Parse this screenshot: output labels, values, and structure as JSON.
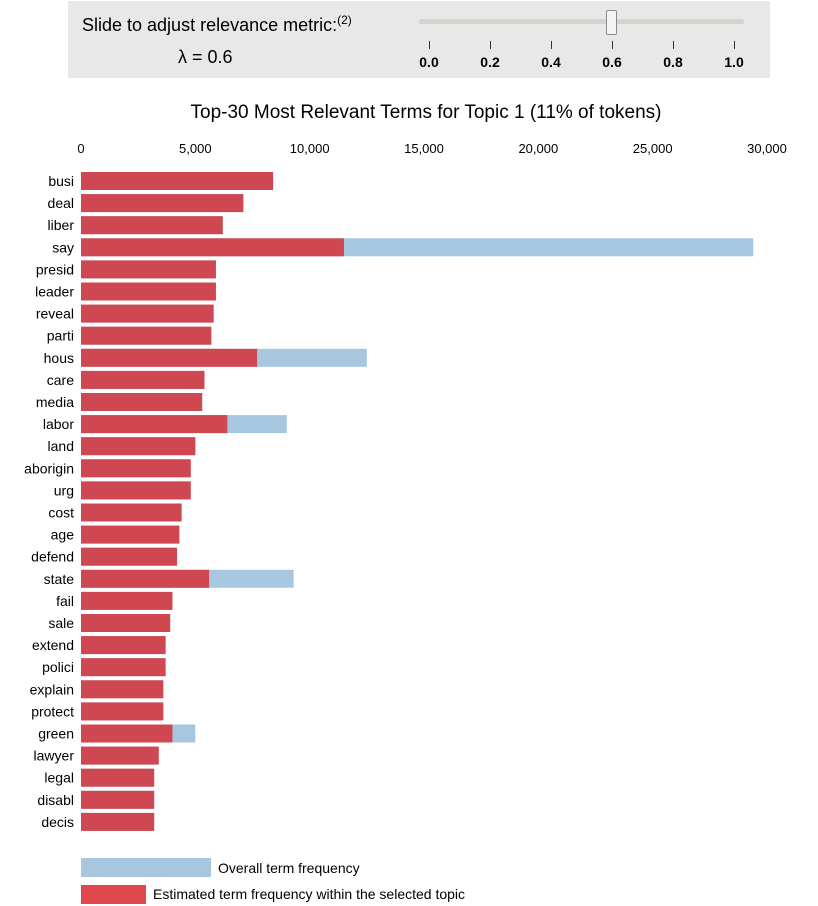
{
  "slider": {
    "title": "Slide to adjust relevance metric:",
    "footnote": "(2)",
    "lambda_text": "λ = 0.6",
    "value": 0.6,
    "min": 0.0,
    "max": 1.0,
    "ticks": [
      "0.0",
      "0.2",
      "0.4",
      "0.6",
      "0.8",
      "1.0"
    ]
  },
  "colors": {
    "overall": "#a6c7df",
    "topic": "#cf4750",
    "legend_topic": "#e0474c"
  },
  "chart_data": {
    "type": "bar",
    "orientation": "horizontal",
    "title": "Top-30 Most Relevant Terms for Topic 1 (11% of tokens)",
    "xlim": [
      0,
      30000
    ],
    "x_ticks": [
      0,
      5000,
      10000,
      15000,
      20000,
      25000,
      30000
    ],
    "x_tick_labels": [
      "0",
      "5,000",
      "10,000",
      "15,000",
      "20,000",
      "25,000",
      "30,000"
    ],
    "grid": false,
    "legend_position": "bottom",
    "categories": [
      "busi",
      "deal",
      "liber",
      "say",
      "presid",
      "leader",
      "reveal",
      "parti",
      "hous",
      "care",
      "media",
      "labor",
      "land",
      "aborigin",
      "urg",
      "cost",
      "age",
      "defend",
      "state",
      "fail",
      "sale",
      "extend",
      "polici",
      "explain",
      "protect",
      "green",
      "lawyer",
      "legal",
      "disabl",
      "decis"
    ],
    "series": [
      {
        "name": "Overall term frequency",
        "values": [
          8400,
          7100,
          6200,
          29400,
          5900,
          5900,
          5800,
          5700,
          12500,
          5400,
          5300,
          9000,
          5000,
          4800,
          4800,
          4400,
          4300,
          4200,
          9300,
          4000,
          3900,
          3700,
          3700,
          3600,
          3600,
          5000,
          3400,
          3200,
          3200,
          3200
        ]
      },
      {
        "name": "Estimated term frequency within the selected topic",
        "values": [
          8400,
          7100,
          6200,
          11500,
          5900,
          5900,
          5800,
          5700,
          7700,
          5400,
          5300,
          6400,
          5000,
          4800,
          4800,
          4400,
          4300,
          4200,
          5600,
          4000,
          3900,
          3700,
          3700,
          3600,
          3600,
          4000,
          3400,
          3200,
          3200,
          3200
        ]
      }
    ]
  }
}
